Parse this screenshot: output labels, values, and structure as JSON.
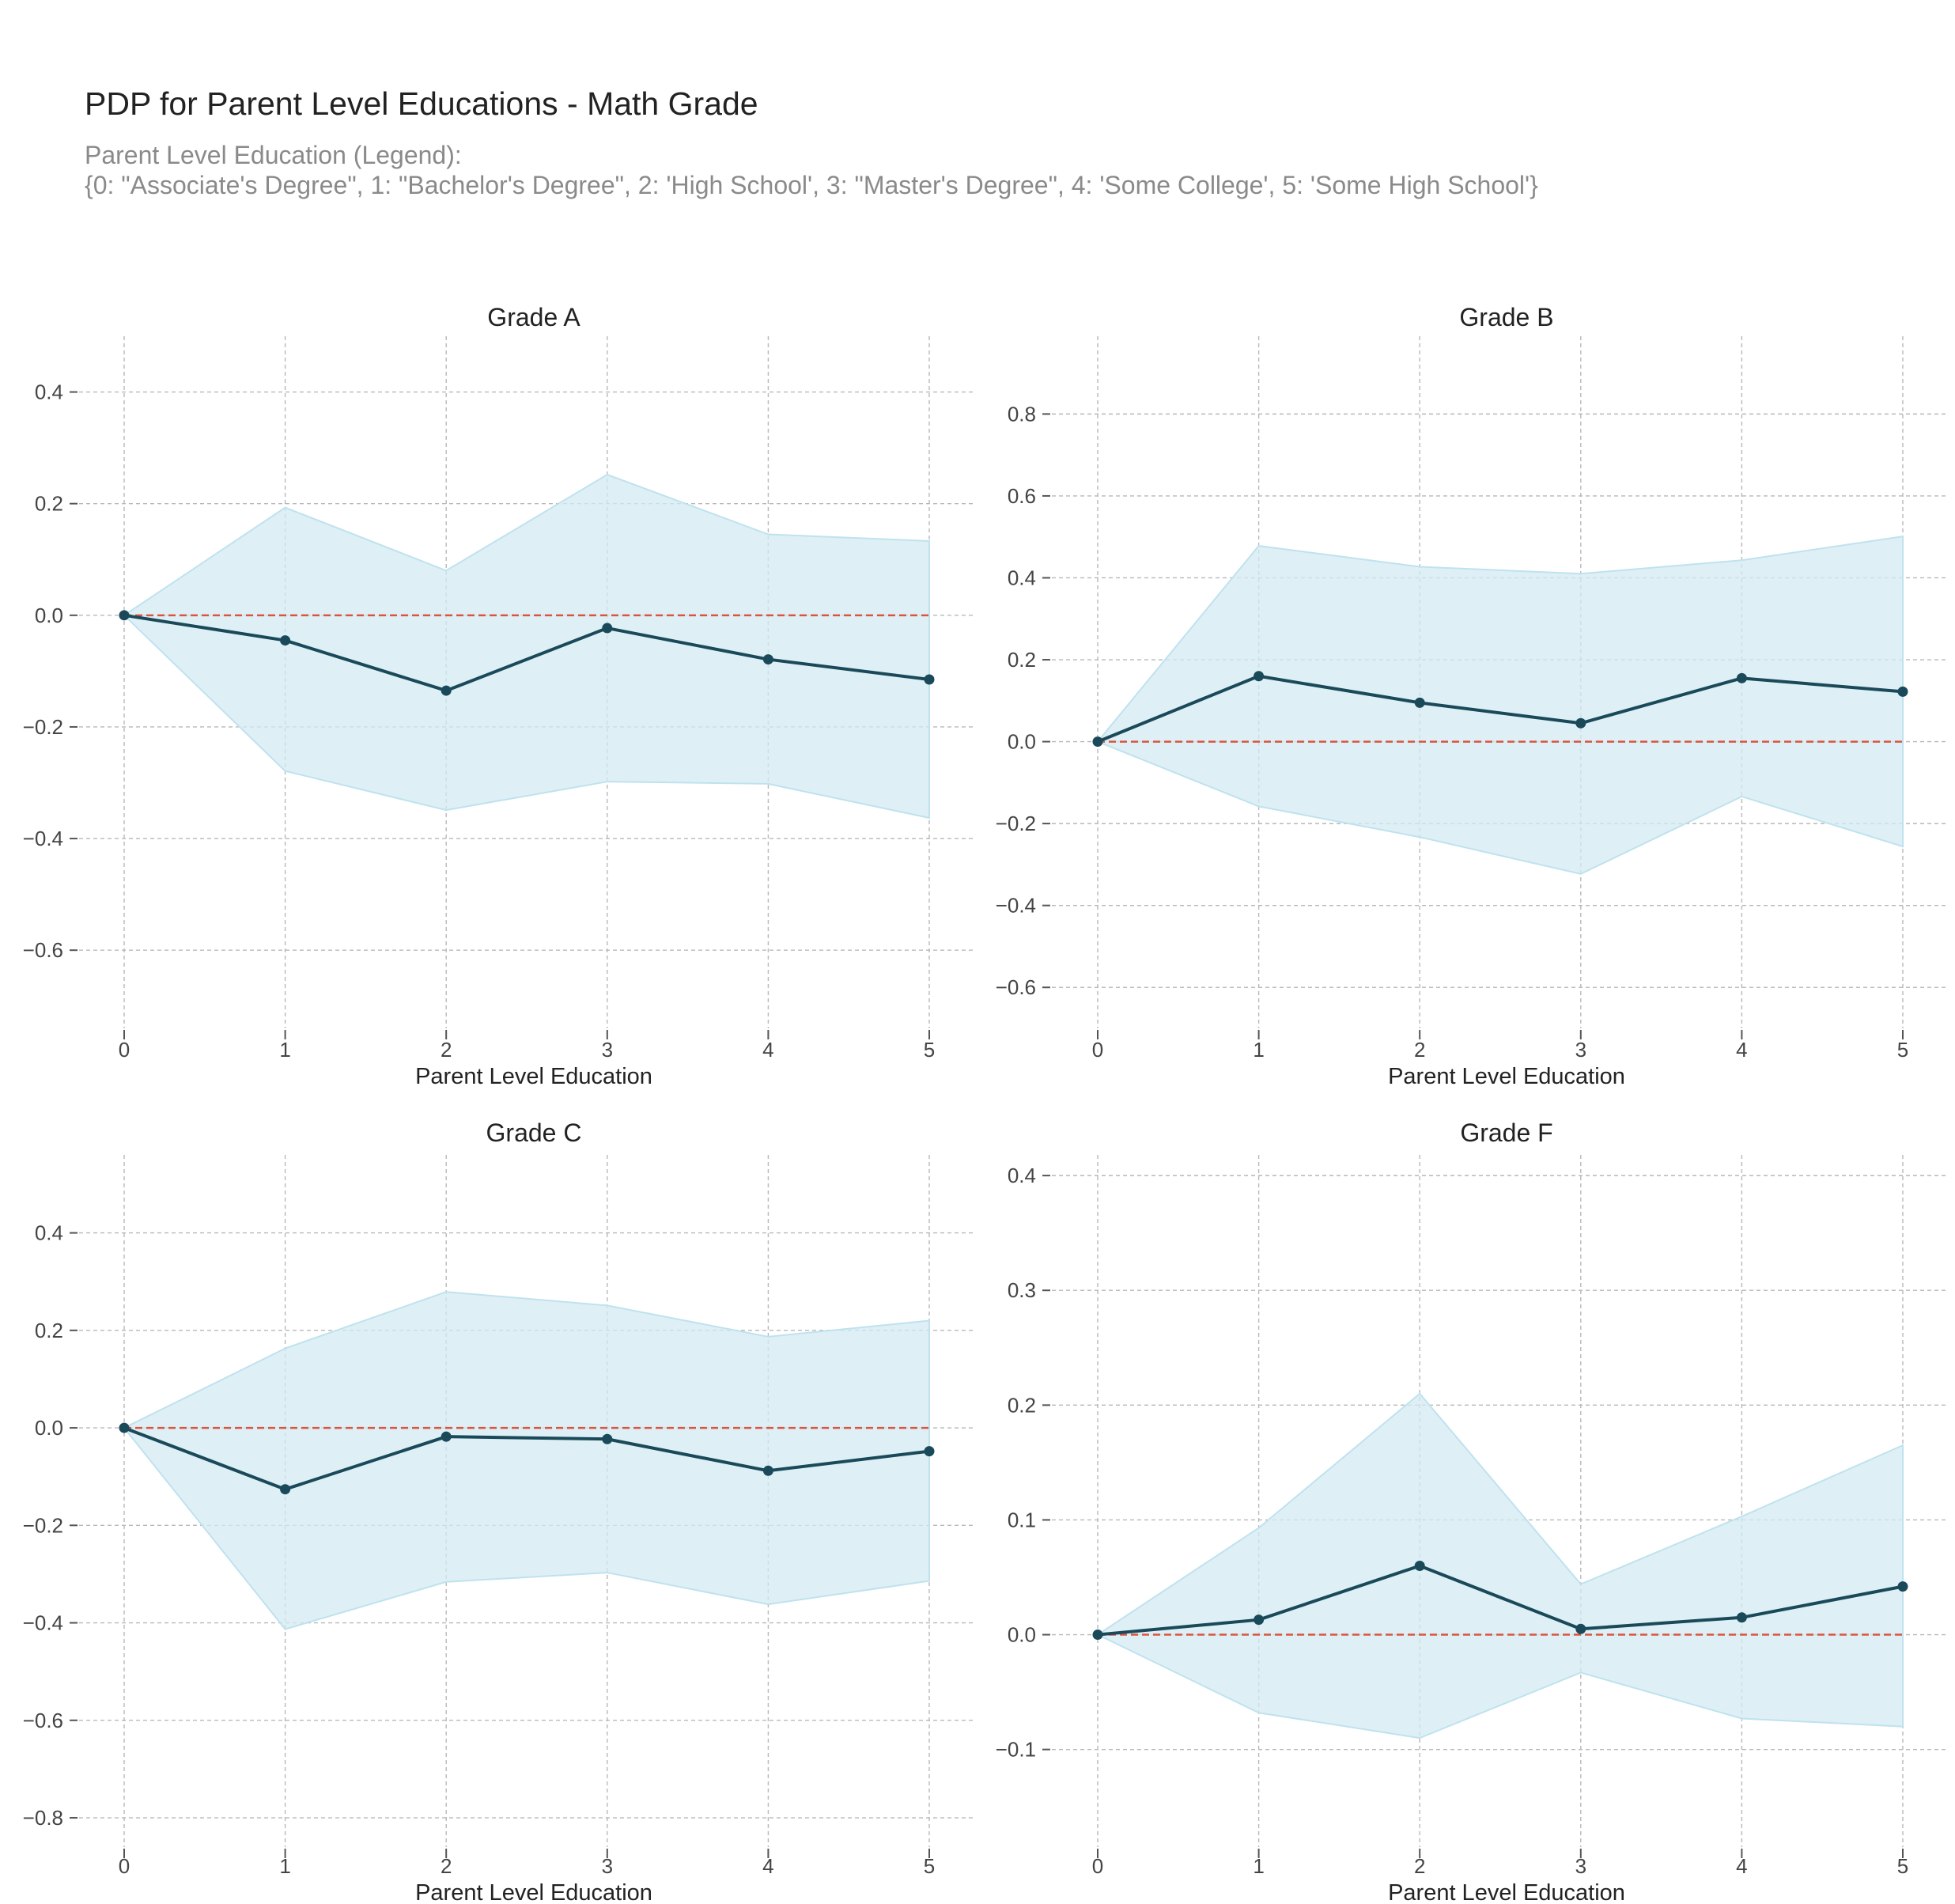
{
  "header": {
    "title": "PDP for Parent Level Educations - Math Grade",
    "subtitle_line1": "Parent Level Education (Legend):",
    "subtitle_line2": "{0: \"Associate's Degree\", 1: \"Bachelor's Degree\", 2: 'High School', 3: \"Master's Degree\", 4: 'Some College', 5: 'Some High School'}"
  },
  "colors": {
    "line": "#1a4a5a",
    "band": "#d3ebf3",
    "band_edge": "#bfe2ee",
    "baseline": "#d9553f",
    "grid": "#b8b8b8",
    "tick": "#555555"
  },
  "chart_data": [
    {
      "type": "line",
      "title": "Grade A",
      "xlabel": "Parent Level Education",
      "ylabel": "",
      "x": [
        0,
        1,
        2,
        3,
        4,
        5
      ],
      "xticks": [
        "0",
        "1",
        "2",
        "3",
        "4",
        "5"
      ],
      "yticks": [
        0.4,
        0.2,
        0.0,
        -0.2,
        -0.4,
        -0.6
      ],
      "ylim": [
        -0.74,
        0.5
      ],
      "grid": true,
      "series": [
        {
          "values": [
            0.0,
            -0.045,
            -0.135,
            -0.023,
            -0.079,
            -0.115
          ]
        }
      ],
      "band_upper": [
        0.0,
        0.193,
        0.08,
        0.252,
        0.145,
        0.133
      ],
      "band_lower": [
        0.0,
        -0.279,
        -0.349,
        -0.298,
        -0.302,
        -0.363
      ],
      "baseline": 0.0
    },
    {
      "type": "line",
      "title": "Grade B",
      "xlabel": "Parent Level Education",
      "ylabel": "",
      "x": [
        0,
        1,
        2,
        3,
        4,
        5
      ],
      "xticks": [
        "0",
        "1",
        "2",
        "3",
        "4",
        "5"
      ],
      "yticks": [
        0.8,
        0.6,
        0.4,
        0.2,
        0.0,
        -0.2,
        -0.4,
        -0.6
      ],
      "ylim": [
        -0.7,
        0.99
      ],
      "grid": true,
      "series": [
        {
          "values": [
            0.0,
            0.16,
            0.095,
            0.045,
            0.155,
            0.122
          ]
        }
      ],
      "band_upper": [
        0.0,
        0.478,
        0.427,
        0.41,
        0.443,
        0.501
      ],
      "band_lower": [
        0.0,
        -0.158,
        -0.233,
        -0.323,
        -0.134,
        -0.256
      ],
      "baseline": 0.0
    },
    {
      "type": "line",
      "title": "Grade C",
      "xlabel": "Parent Level Education",
      "ylabel": "",
      "x": [
        0,
        1,
        2,
        3,
        4,
        5
      ],
      "xticks": [
        "0",
        "1",
        "2",
        "3",
        "4",
        "5"
      ],
      "yticks": [
        0.4,
        0.2,
        0.0,
        -0.2,
        -0.4,
        -0.6,
        -0.8
      ],
      "ylim": [
        -0.86,
        0.56
      ],
      "grid": true,
      "series": [
        {
          "values": [
            0.0,
            -0.126,
            -0.018,
            -0.023,
            -0.088,
            -0.048
          ]
        }
      ],
      "band_upper": [
        0.0,
        0.163,
        0.279,
        0.251,
        0.187,
        0.22
      ],
      "band_lower": [
        0.0,
        -0.413,
        -0.316,
        -0.297,
        -0.362,
        -0.314
      ],
      "baseline": 0.0
    },
    {
      "type": "line",
      "title": "Grade F",
      "xlabel": "Parent Level Education",
      "ylabel": "",
      "x": [
        0,
        1,
        2,
        3,
        4,
        5
      ],
      "xticks": [
        "0",
        "1",
        "2",
        "3",
        "4",
        "5"
      ],
      "yticks": [
        0.4,
        0.3,
        0.2,
        0.1,
        0.0,
        -0.1
      ],
      "ylim": [
        -0.185,
        0.418
      ],
      "grid": true,
      "series": [
        {
          "values": [
            0.0,
            0.013,
            0.06,
            0.005,
            0.015,
            0.042
          ]
        }
      ],
      "band_upper": [
        0.0,
        0.093,
        0.21,
        0.044,
        0.103,
        0.165
      ],
      "band_lower": [
        0.0,
        -0.068,
        -0.09,
        -0.033,
        -0.073,
        -0.08
      ],
      "baseline": 0.0
    }
  ]
}
